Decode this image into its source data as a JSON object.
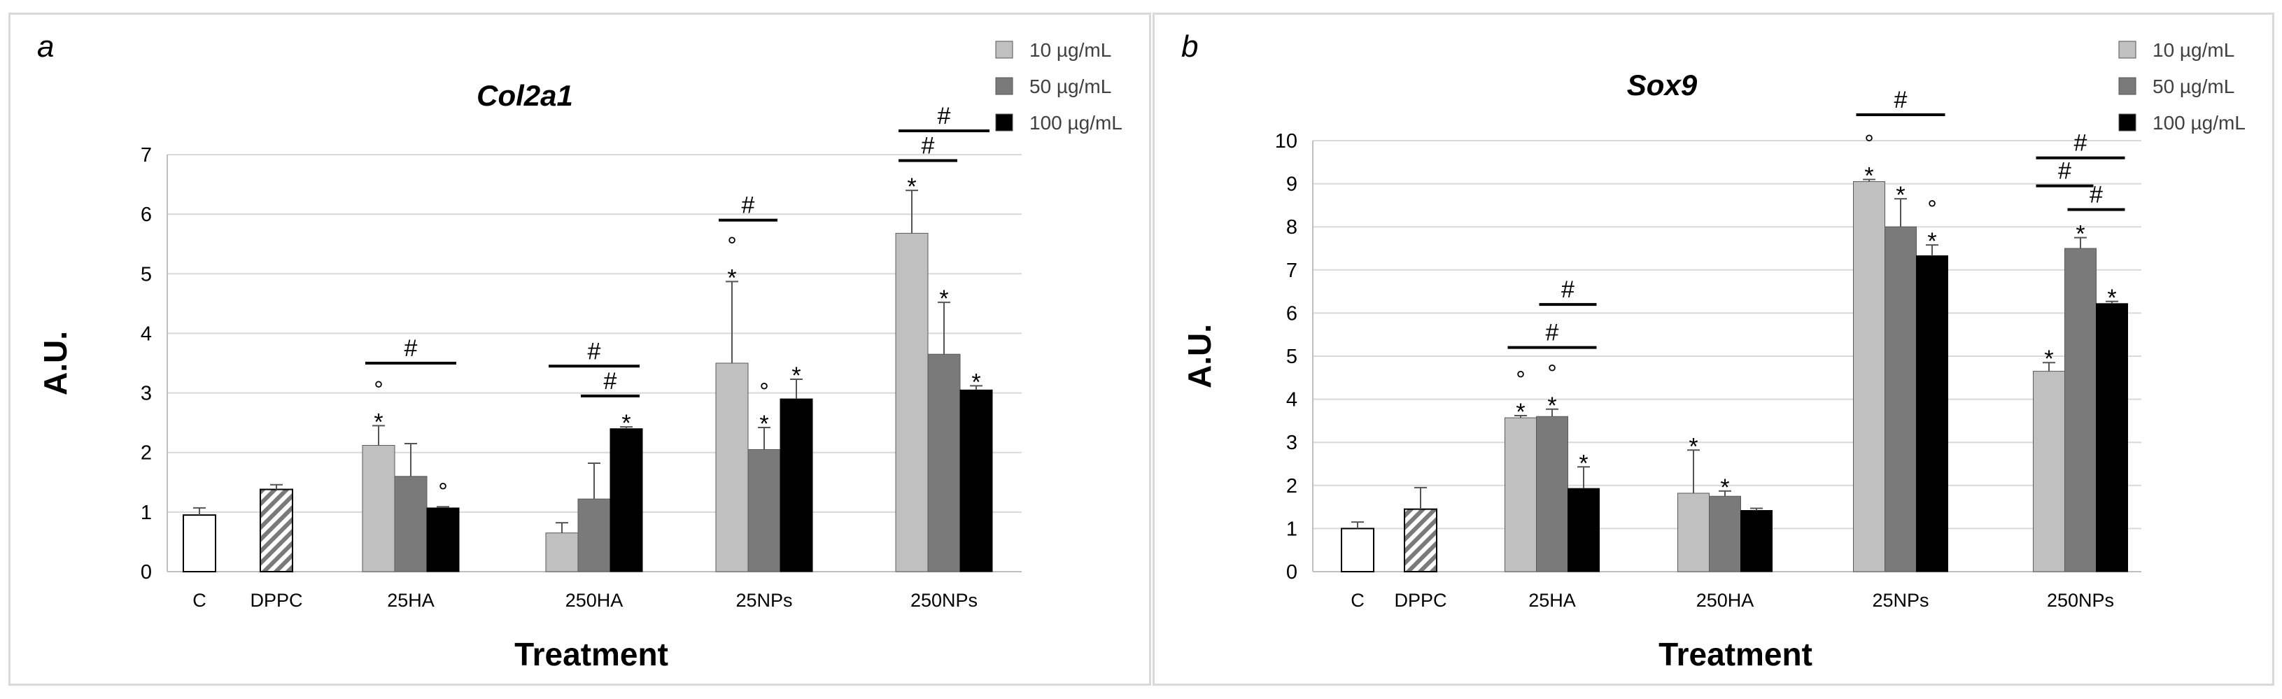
{
  "legend": {
    "items": [
      {
        "label": "10 µg/mL",
        "color": "#c0c0c0"
      },
      {
        "label": "50 µg/mL",
        "color": "#7a7a7a"
      },
      {
        "label": "100 µg/mL",
        "color": "#000000"
      }
    ]
  },
  "chart_data": [
    {
      "panel_label": "a",
      "type": "bar",
      "title": "Col2a1",
      "xlabel": "Treatment",
      "ylabel": "A.U.",
      "ylim": [
        0,
        7
      ],
      "yticks": [
        0,
        1,
        2,
        3,
        4,
        5,
        6,
        7
      ],
      "grid": true,
      "categories": [
        "C",
        "DPPC",
        "25HA",
        "250HA",
        "25NPs",
        "250NPs"
      ],
      "controls": [
        {
          "category": "C",
          "value": 0.95,
          "error": 0.12,
          "style": "white"
        },
        {
          "category": "DPPC",
          "value": 1.38,
          "error": 0.08,
          "style": "hatched"
        }
      ],
      "series": [
        {
          "name": "10 µg/mL",
          "values": [
            null,
            null,
            2.12,
            0.65,
            3.5,
            5.68
          ],
          "errors": [
            null,
            null,
            0.33,
            0.17,
            1.37,
            0.72
          ]
        },
        {
          "name": "50 µg/mL",
          "values": [
            null,
            null,
            1.6,
            1.22,
            2.05,
            3.65
          ],
          "errors": [
            null,
            null,
            0.55,
            0.6,
            0.37,
            0.87
          ]
        },
        {
          "name": "100 µg/mL",
          "values": [
            null,
            null,
            1.07,
            2.4,
            2.9,
            3.05
          ],
          "errors": [
            null,
            null,
            0.02,
            0.03,
            0.33,
            0.07
          ]
        }
      ],
      "marks": [
        {
          "category": "25HA",
          "series": 0,
          "symbols": [
            "°",
            "*"
          ]
        },
        {
          "category": "25HA",
          "series": 2,
          "symbols": [
            "°"
          ]
        },
        {
          "category": "250HA",
          "series": 2,
          "symbols": [
            "*"
          ]
        },
        {
          "category": "25NPs",
          "series": 0,
          "symbols": [
            "°",
            "*"
          ]
        },
        {
          "category": "25NPs",
          "series": 1,
          "symbols": [
            "°",
            "*"
          ]
        },
        {
          "category": "25NPs",
          "series": 2,
          "symbols": [
            "*"
          ]
        },
        {
          "category": "250NPs",
          "series": 0,
          "symbols": [
            "*"
          ]
        },
        {
          "category": "250NPs",
          "series": 1,
          "symbols": [
            "*"
          ]
        },
        {
          "category": "250NPs",
          "series": 2,
          "symbols": [
            "*"
          ]
        }
      ],
      "brackets": [
        {
          "category": "25HA",
          "from": 0,
          "to": 2,
          "label": "#",
          "level": 3.5
        },
        {
          "category": "250HA",
          "from": 0,
          "to": 2,
          "label": "#",
          "level": 3.45
        },
        {
          "category": "250HA",
          "from": 1,
          "to": 2,
          "label": "#",
          "level": 2.95
        },
        {
          "category": "25NPs",
          "from": 0,
          "to": 1,
          "label": "#",
          "level": 5.9
        },
        {
          "category": "250NPs",
          "from": 0,
          "to": 2,
          "label": "#",
          "level": 7.4
        },
        {
          "category": "250NPs",
          "from": 0,
          "to": 1,
          "label": "#",
          "level": 6.9
        }
      ]
    },
    {
      "panel_label": "b",
      "type": "bar",
      "title": "Sox9",
      "xlabel": "Treatment",
      "ylabel": "A.U.",
      "ylim": [
        0,
        10
      ],
      "yticks": [
        0,
        1,
        2,
        3,
        4,
        5,
        6,
        7,
        8,
        9,
        10
      ],
      "grid": true,
      "categories": [
        "C",
        "DPPC",
        "25HA",
        "250HA",
        "25NPs",
        "250NPs"
      ],
      "controls": [
        {
          "category": "C",
          "value": 1.0,
          "error": 0.15,
          "style": "white"
        },
        {
          "category": "DPPC",
          "value": 1.45,
          "error": 0.5,
          "style": "hatched"
        }
      ],
      "series": [
        {
          "name": "10 µg/mL",
          "values": [
            null,
            null,
            3.57,
            1.82,
            9.05,
            4.65
          ],
          "errors": [
            null,
            null,
            0.05,
            1.0,
            0.05,
            0.2
          ]
        },
        {
          "name": "50 µg/mL",
          "values": [
            null,
            null,
            3.6,
            1.75,
            8.0,
            7.5
          ],
          "errors": [
            null,
            null,
            0.17,
            0.12,
            0.65,
            0.25
          ]
        },
        {
          "name": "100 µg/mL",
          "values": [
            null,
            null,
            1.93,
            1.42,
            7.33,
            6.22
          ],
          "errors": [
            null,
            null,
            0.5,
            0.05,
            0.25,
            0.05
          ]
        }
      ],
      "marks": [
        {
          "category": "25HA",
          "series": 0,
          "symbols": [
            "°",
            "*"
          ]
        },
        {
          "category": "25HA",
          "series": 1,
          "symbols": [
            "°",
            "*"
          ]
        },
        {
          "category": "25HA",
          "series": 2,
          "symbols": [
            "*"
          ]
        },
        {
          "category": "250HA",
          "series": 0,
          "symbols": [
            "*"
          ]
        },
        {
          "category": "250HA",
          "series": 1,
          "symbols": [
            "*"
          ]
        },
        {
          "category": "25NPs",
          "series": 0,
          "symbols": [
            "°",
            "*"
          ]
        },
        {
          "category": "25NPs",
          "series": 1,
          "symbols": [
            "*"
          ]
        },
        {
          "category": "25NPs",
          "series": 2,
          "symbols": [
            "°",
            "*"
          ]
        },
        {
          "category": "250NPs",
          "series": 0,
          "symbols": [
            "*"
          ]
        },
        {
          "category": "250NPs",
          "series": 1,
          "symbols": [
            "*"
          ]
        },
        {
          "category": "250NPs",
          "series": 2,
          "symbols": [
            "*"
          ]
        }
      ],
      "brackets": [
        {
          "category": "25HA",
          "from": 0,
          "to": 2,
          "label": "#",
          "level": 5.2
        },
        {
          "category": "25HA",
          "from": 1,
          "to": 2,
          "label": "#",
          "level": 6.2
        },
        {
          "category": "25NPs",
          "from": 0,
          "to": 2,
          "label": "#",
          "level": 10.6
        },
        {
          "category": "250NPs",
          "from": 0,
          "to": 2,
          "label": "#",
          "level": 9.6
        },
        {
          "category": "250NPs",
          "from": 0,
          "to": 1,
          "label": "#",
          "level": 8.95
        },
        {
          "category": "250NPs",
          "from": 1,
          "to": 2,
          "label": "#",
          "level": 8.4
        }
      ]
    }
  ]
}
